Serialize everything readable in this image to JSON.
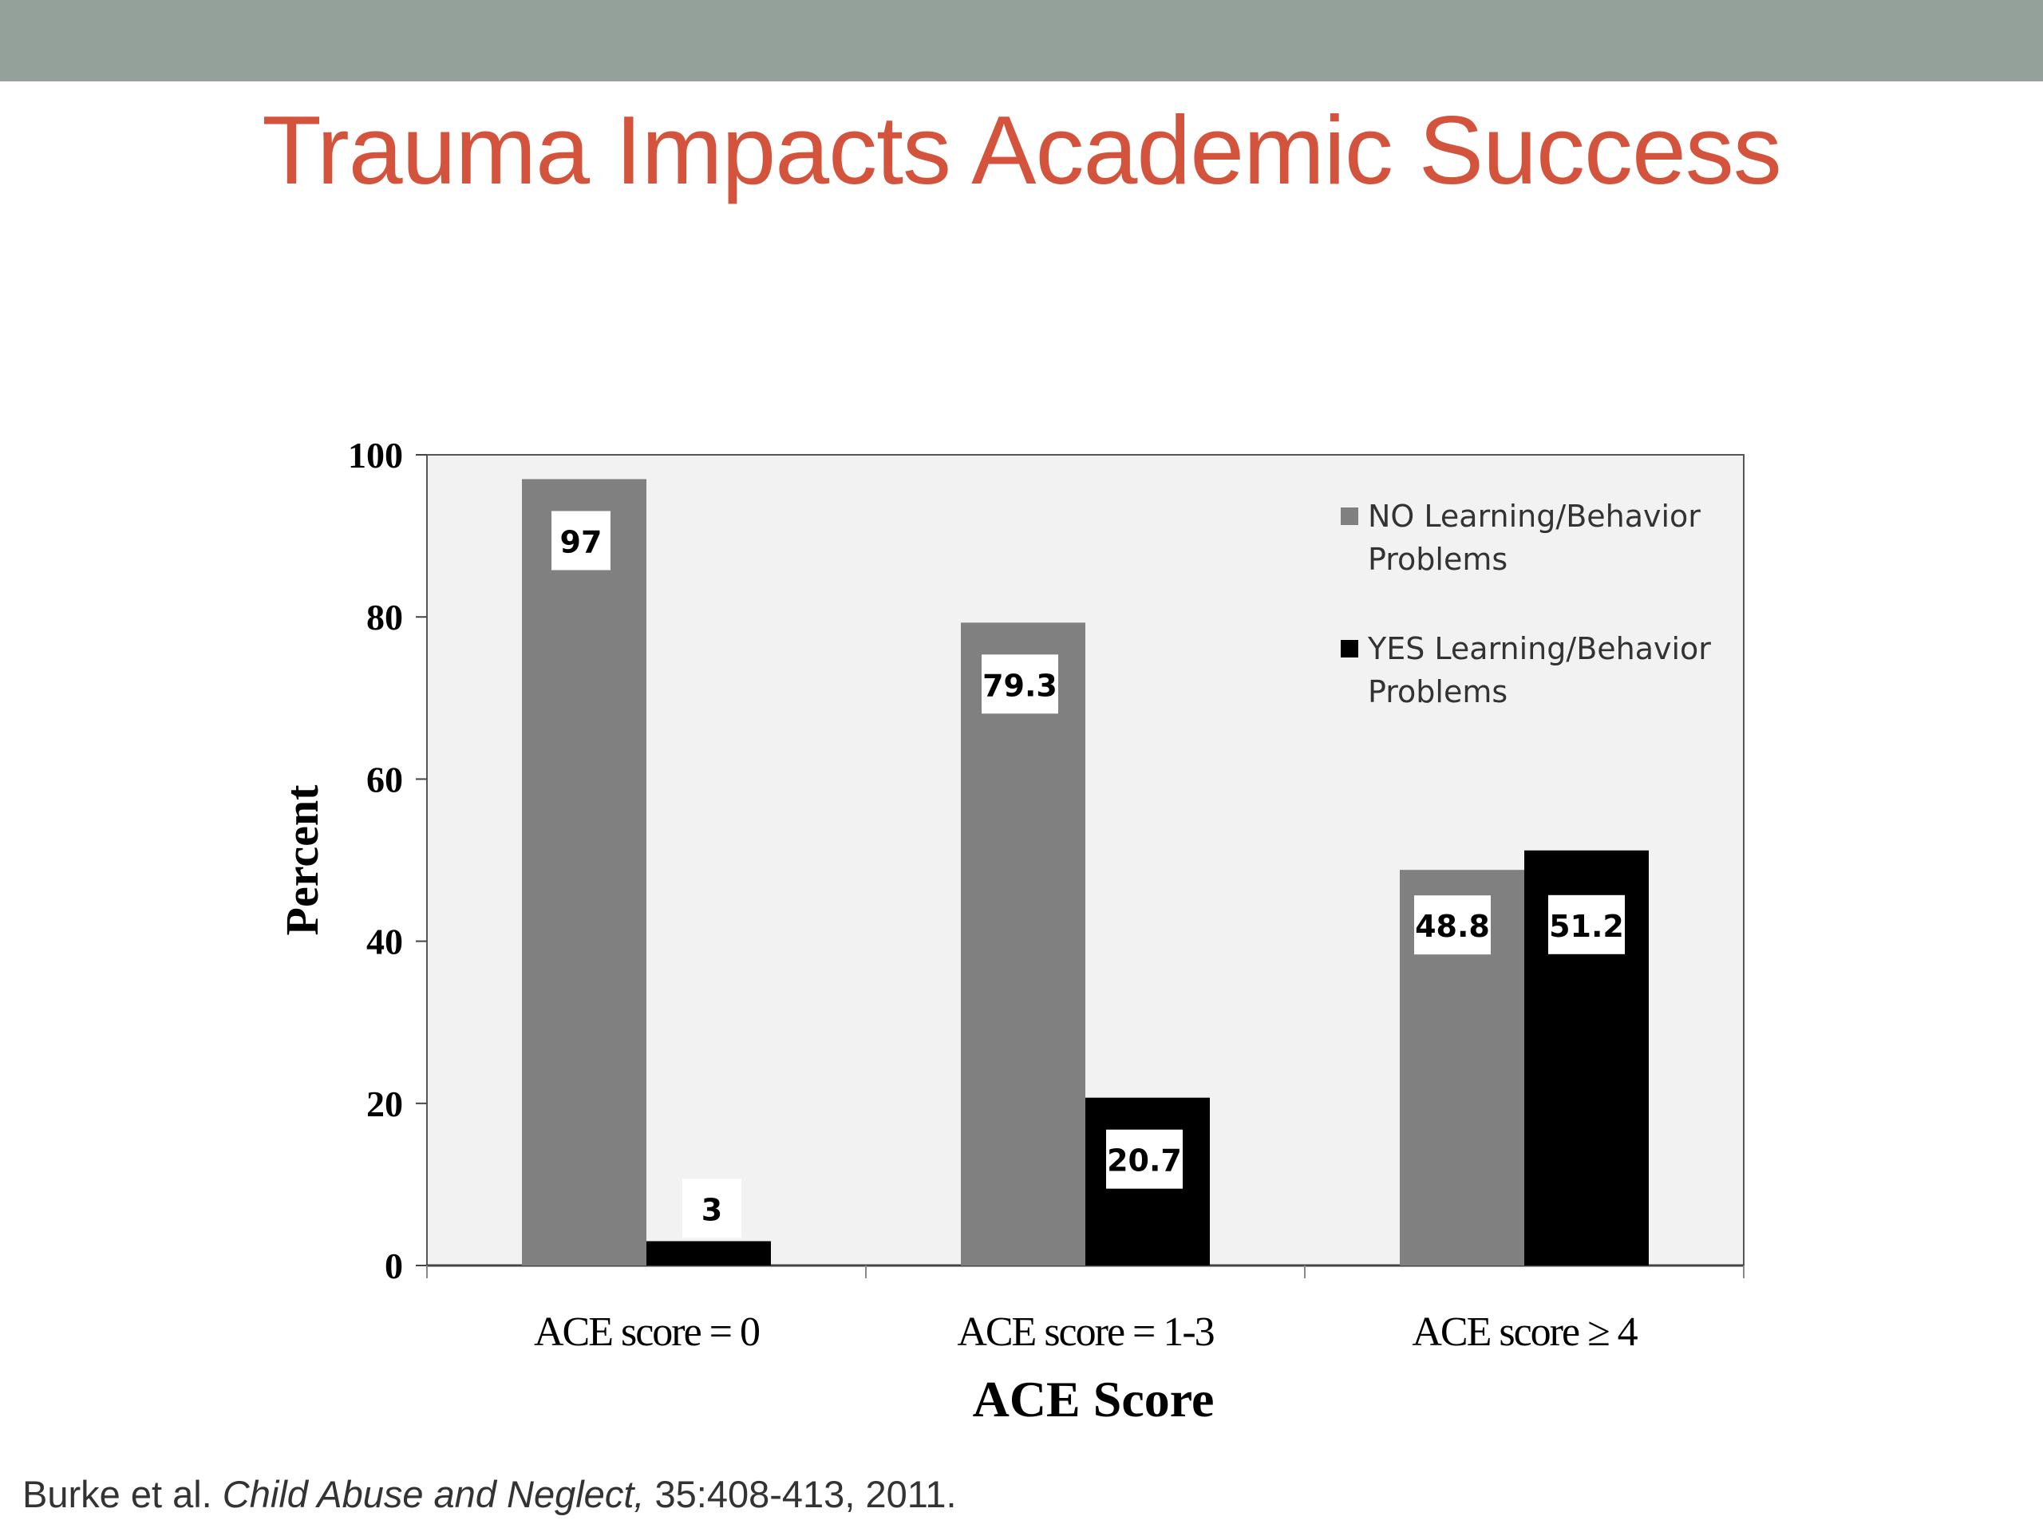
{
  "slide": {
    "title": "Trauma Impacts Academic Success",
    "citation": {
      "authors": "Burke et al.",
      "journal": "Child Abuse and Neglect,",
      "details": "35:408-413, 2011."
    }
  },
  "colors": {
    "band": "#93a19a",
    "title": "#d4533c",
    "series_no": "#808080",
    "series_yes": "#000000",
    "plot_bg": "#f2f2f2"
  },
  "chart_data": {
    "type": "bar",
    "title": "",
    "xlabel": "ACE Score",
    "ylabel": "Percent",
    "categories": [
      "ACE score = 0",
      "ACE score = 1-3",
      "ACE score ≥ 4"
    ],
    "series": [
      {
        "name": "NO Learning/Behavior Problems",
        "values": [
          97,
          79.3,
          48.8
        ],
        "labels": [
          "97",
          "79.3",
          "48.8"
        ]
      },
      {
        "name": "YES Learning/Behavior Problems",
        "values": [
          3,
          20.7,
          51.2
        ],
        "labels": [
          "3",
          "20.7",
          "51.2"
        ]
      }
    ],
    "yticks": [
      "0",
      "20",
      "40",
      "60",
      "80",
      "100"
    ],
    "ylim": [
      0,
      100
    ],
    "grid": false,
    "legend": "top-right"
  }
}
